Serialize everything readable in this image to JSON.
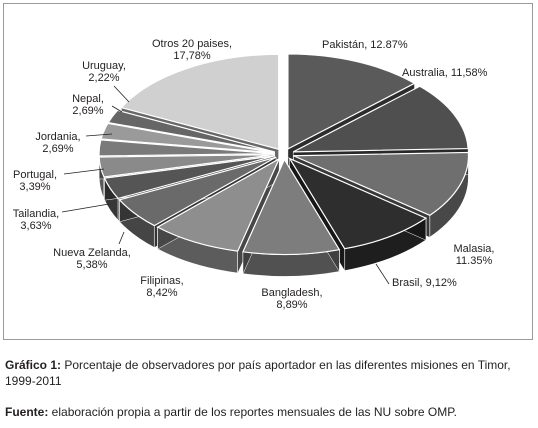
{
  "chart_data": {
    "type": "pie",
    "style": "3d-exploded",
    "title": "",
    "slices": [
      {
        "name": "Pakistán",
        "label": "Pakistán, 12.87%",
        "value": 12.87,
        "color": "#5a5a5a"
      },
      {
        "name": "Australia",
        "label": "Australia, 11,58%",
        "value": 11.58,
        "color": "#4f4f4f"
      },
      {
        "name": "Malasia",
        "label": "Malasia, 11.35%",
        "value": 11.35,
        "color": "#6f6f6f"
      },
      {
        "name": "Brasil",
        "label": "Brasil, 9,12%",
        "value": 9.12,
        "color": "#2e2e2e"
      },
      {
        "name": "Bangladesh",
        "label": "Bangladesh, 8,89%",
        "value": 8.89,
        "color": "#7d7d7d"
      },
      {
        "name": "Filipinas",
        "label": "Filipinas, 8,42%",
        "value": 8.42,
        "color": "#8e8e8e"
      },
      {
        "name": "Nueva Zelanda",
        "label": "Nueva Zelanda, 5,38%",
        "value": 5.38,
        "color": "#6a6a6a"
      },
      {
        "name": "Tailandia",
        "label": "Tailandia, 3,63%",
        "value": 3.63,
        "color": "#555555"
      },
      {
        "name": "Portugal",
        "label": "Portugal, 3,39%",
        "value": 3.39,
        "color": "#8a8a8a"
      },
      {
        "name": "Jordania",
        "label": "Jordania, 2,69%",
        "value": 2.69,
        "color": "#7a7a7a"
      },
      {
        "name": "Nepal",
        "label": "Nepal, 2,69%",
        "value": 2.69,
        "color": "#9a9a9a"
      },
      {
        "name": "Uruguay",
        "label": "Uruguay, 2,22%",
        "value": 2.22,
        "color": "#666666"
      },
      {
        "name": "Otros 20 paises",
        "label": "Otros 20 paises, 17,78%",
        "value": 17.78,
        "color": "#d0d0d0"
      }
    ]
  },
  "caption": {
    "prefix": "Gráfico 1:",
    "text": " Porcentaje de observadores por país aportador en las diferentes misiones en Timor, 1999-2011"
  },
  "source": {
    "prefix": "Fuente:",
    "text": " elaboración propia a partir de los reportes mensuales de las NU sobre OMP."
  }
}
